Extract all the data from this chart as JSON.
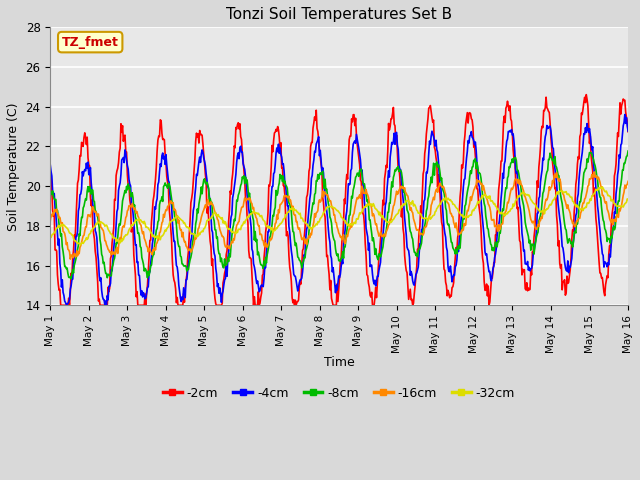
{
  "title": "Tonzi Soil Temperatures Set B",
  "xlabel": "Time",
  "ylabel": "Soil Temperature (C)",
  "ylim": [
    14,
    28
  ],
  "xlim": [
    0,
    360
  ],
  "annotation_text": "TZ_fmet",
  "annotation_color": "#cc0000",
  "annotation_bg": "#ffffcc",
  "annotation_border": "#cc9900",
  "fig_bg_color": "#d9d9d9",
  "plot_bg_color": "#e8e8e8",
  "grid_color": "#ffffff",
  "line_colors": [
    "#ff0000",
    "#0000ff",
    "#00bb00",
    "#ff8800",
    "#dddd00"
  ],
  "line_labels": [
    "-2cm",
    "-4cm",
    "-8cm",
    "-16cm",
    "-32cm"
  ],
  "line_width": 1.2,
  "tick_labels_x": [
    "May 1",
    "May 2",
    "May 3",
    "May 4",
    "May 5",
    "May 6",
    "May 7",
    "May 8",
    "May 9",
    "May 10",
    "May 11",
    "May 12",
    "May 13",
    "May 14",
    "May 15",
    "May 16"
  ],
  "tick_positions_x": [
    0,
    24,
    48,
    72,
    96,
    120,
    144,
    168,
    192,
    216,
    240,
    264,
    288,
    312,
    336,
    360
  ],
  "yticks": [
    14,
    16,
    18,
    20,
    22,
    24,
    26,
    28
  ],
  "figsize": [
    6.4,
    4.8
  ],
  "dpi": 100,
  "base_min": 17.5,
  "base_max_trend": 19.5,
  "daily_amp_2cm": 4.5,
  "daily_amp_4cm": 3.5,
  "daily_amp_8cm": 2.2,
  "daily_amp_16cm": 1.2,
  "daily_amp_32cm": 0.5,
  "phase_lag_4cm": 1.5,
  "phase_lag_8cm": 3.5,
  "phase_lag_16cm": 6.0,
  "phase_lag_32cm": 10.0,
  "peak_hour": 15,
  "noise_2cm": 0.3,
  "noise_4cm": 0.2,
  "noise_8cm": 0.15,
  "noise_16cm": 0.1,
  "noise_32cm": 0.05
}
